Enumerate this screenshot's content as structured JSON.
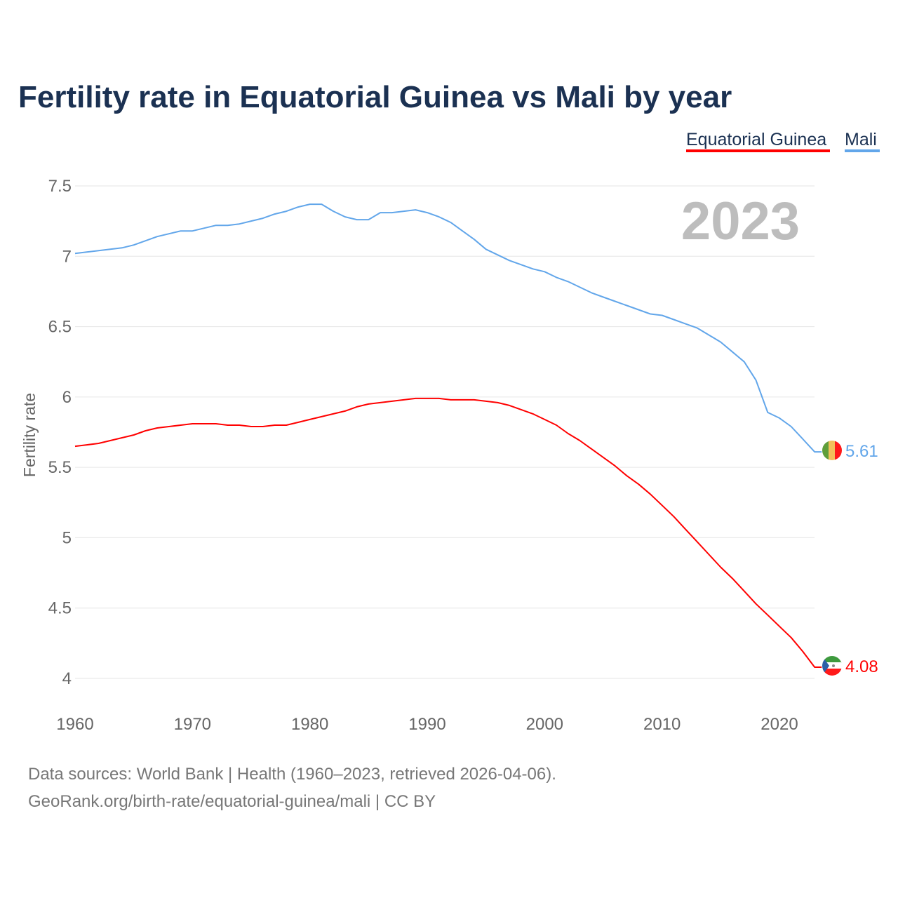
{
  "chart_data": {
    "type": "line",
    "title": "Fertility rate in Equatorial Guinea vs Mali by year",
    "xlabel": "",
    "ylabel": "Fertility rate",
    "xlim": [
      1960,
      2023
    ],
    "ylim": [
      4,
      7.5
    ],
    "x_ticks": [
      "1960",
      "1970",
      "1980",
      "1990",
      "2000",
      "2010",
      "2020"
    ],
    "y_ticks": [
      "4",
      "4.5",
      "5",
      "5.5",
      "6",
      "6.5",
      "7",
      "7.5"
    ],
    "grid": true,
    "legend_position": "top-right",
    "current_year": "2023",
    "x": [
      1960,
      1961,
      1962,
      1963,
      1964,
      1965,
      1966,
      1967,
      1968,
      1969,
      1970,
      1971,
      1972,
      1973,
      1974,
      1975,
      1976,
      1977,
      1978,
      1979,
      1980,
      1981,
      1982,
      1983,
      1984,
      1985,
      1986,
      1987,
      1988,
      1989,
      1990,
      1991,
      1992,
      1993,
      1994,
      1995,
      1996,
      1997,
      1998,
      1999,
      2000,
      2001,
      2002,
      2003,
      2004,
      2005,
      2006,
      2007,
      2008,
      2009,
      2010,
      2011,
      2012,
      2013,
      2014,
      2015,
      2016,
      2017,
      2018,
      2019,
      2020,
      2021,
      2022,
      2023
    ],
    "series": [
      {
        "name": "Equatorial Guinea",
        "color": "#ff0000",
        "end_label": "4.08",
        "values": [
          5.65,
          5.66,
          5.67,
          5.69,
          5.71,
          5.73,
          5.76,
          5.78,
          5.79,
          5.8,
          5.81,
          5.81,
          5.81,
          5.8,
          5.8,
          5.79,
          5.79,
          5.8,
          5.8,
          5.82,
          5.84,
          5.86,
          5.88,
          5.9,
          5.93,
          5.95,
          5.96,
          5.97,
          5.98,
          5.99,
          5.99,
          5.99,
          5.98,
          5.98,
          5.98,
          5.97,
          5.96,
          5.94,
          5.91,
          5.88,
          5.84,
          5.8,
          5.74,
          5.69,
          5.63,
          5.57,
          5.51,
          5.44,
          5.38,
          5.31,
          5.23,
          5.15,
          5.06,
          4.97,
          4.88,
          4.79,
          4.71,
          4.62,
          4.53,
          4.45,
          4.37,
          4.29,
          4.19,
          4.08
        ]
      },
      {
        "name": "Mali",
        "color": "#62a6ea",
        "end_label": "5.61",
        "values": [
          7.02,
          7.03,
          7.04,
          7.05,
          7.06,
          7.08,
          7.11,
          7.14,
          7.16,
          7.18,
          7.18,
          7.2,
          7.22,
          7.22,
          7.23,
          7.25,
          7.27,
          7.3,
          7.32,
          7.35,
          7.37,
          7.37,
          7.32,
          7.28,
          7.26,
          7.26,
          7.31,
          7.31,
          7.32,
          7.33,
          7.31,
          7.28,
          7.24,
          7.18,
          7.12,
          7.05,
          7.01,
          6.97,
          6.94,
          6.91,
          6.89,
          6.85,
          6.82,
          6.78,
          6.74,
          6.71,
          6.68,
          6.65,
          6.62,
          6.59,
          6.58,
          6.55,
          6.52,
          6.49,
          6.44,
          6.39,
          6.32,
          6.25,
          6.12,
          5.89,
          5.85,
          5.79,
          5.7,
          5.61
        ]
      }
    ]
  },
  "footer": {
    "line1": "Data sources: World Bank | Health (1960–2023, retrieved 2026-04-06).",
    "line2": "GeoRank.org/birth-rate/equatorial-guinea/mali | CC BY"
  }
}
